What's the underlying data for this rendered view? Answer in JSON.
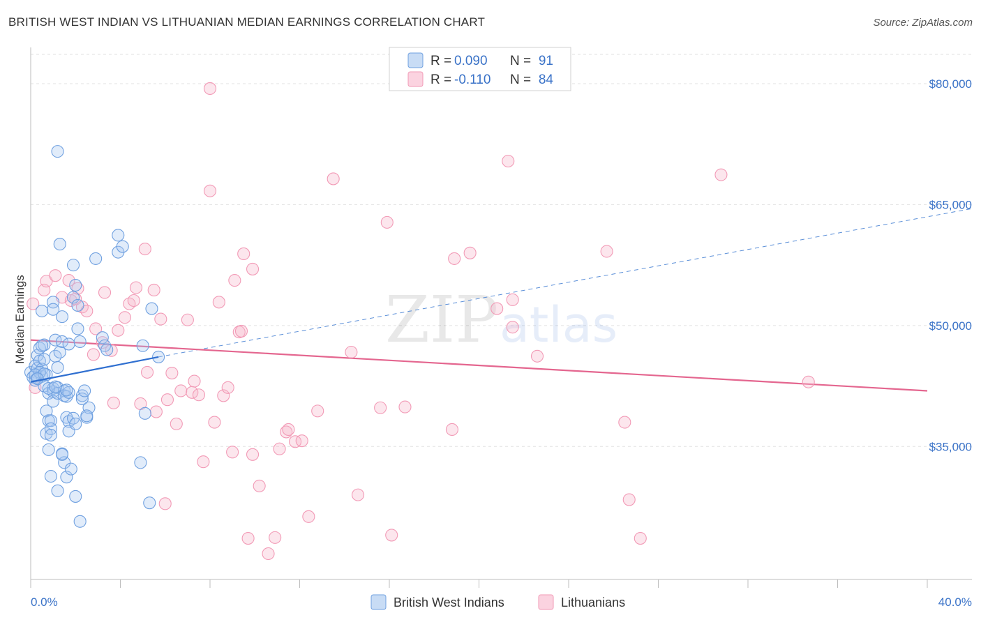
{
  "title": "BRITISH WEST INDIAN VS LITHUANIAN MEDIAN EARNINGS CORRELATION CHART",
  "source": "Source: ZipAtlas.com",
  "watermark": {
    "zip": "ZIP",
    "atlas": "atlas"
  },
  "legend_top": [
    {
      "r_label": "R = ",
      "r_value": "0.090",
      "n_label": "N = ",
      "n_value": "91",
      "color": "#a9c8f0"
    },
    {
      "r_label": "R = ",
      "r_value": "-0.110",
      "n_label": "N = ",
      "n_value": "84",
      "color": "#f7b8cc"
    }
  ],
  "legend_bottom": [
    {
      "label": "British West Indians",
      "color": "#a9c8f0"
    },
    {
      "label": "Lithuanians",
      "color": "#f7b8cc"
    }
  ],
  "chart_data": {
    "type": "scatter",
    "title": "BRITISH WEST INDIAN VS LITHUANIAN MEDIAN EARNINGS CORRELATION CHART",
    "xlabel": "",
    "ylabel": "Median Earnings",
    "xlim": [
      0,
      40
    ],
    "ylim": [
      18500,
      84500
    ],
    "x_tick_labels": [
      "0.0%",
      "40.0%"
    ],
    "y_ticks": [
      35000,
      50000,
      65000,
      80000
    ],
    "y_tick_labels": [
      "$35,000",
      "$50,000",
      "$65,000",
      "$80,000"
    ],
    "series": [
      {
        "name": "British West Indians",
        "color": "#6fa0e0",
        "trend": {
          "x0": 0.0,
          "y0": 43000,
          "x1": 5.7,
          "y1": 46100,
          "dash_to_x": 40.0,
          "dash_to_y": 64500
        },
        "points": [
          [
            0.0,
            44200
          ],
          [
            0.1,
            43600
          ],
          [
            0.2,
            45000
          ],
          [
            0.2,
            43200
          ],
          [
            0.3,
            46300
          ],
          [
            0.3,
            44700
          ],
          [
            0.3,
            43500
          ],
          [
            0.4,
            47200
          ],
          [
            0.4,
            45600
          ],
          [
            0.5,
            43700
          ],
          [
            0.5,
            44600
          ],
          [
            0.5,
            51800
          ],
          [
            0.6,
            47600
          ],
          [
            0.6,
            45800
          ],
          [
            0.6,
            42500
          ],
          [
            0.7,
            43900
          ],
          [
            0.7,
            39400
          ],
          [
            0.7,
            36600
          ],
          [
            0.8,
            38200
          ],
          [
            0.8,
            34600
          ],
          [
            0.8,
            41600
          ],
          [
            0.9,
            38200
          ],
          [
            0.9,
            37200
          ],
          [
            0.9,
            36400
          ],
          [
            0.9,
            31300
          ],
          [
            1.0,
            42200
          ],
          [
            1.0,
            41800
          ],
          [
            1.0,
            40600
          ],
          [
            1.0,
            52900
          ],
          [
            1.1,
            48200
          ],
          [
            1.1,
            46200
          ],
          [
            1.2,
            42300
          ],
          [
            1.2,
            41600
          ],
          [
            1.2,
            44800
          ],
          [
            1.2,
            29500
          ],
          [
            1.3,
            60100
          ],
          [
            1.3,
            46700
          ],
          [
            1.4,
            51100
          ],
          [
            1.4,
            48000
          ],
          [
            1.4,
            34100
          ],
          [
            1.5,
            41900
          ],
          [
            1.5,
            41300
          ],
          [
            1.5,
            33000
          ],
          [
            1.6,
            41200
          ],
          [
            1.6,
            38600
          ],
          [
            1.6,
            31200
          ],
          [
            1.7,
            47700
          ],
          [
            1.7,
            41700
          ],
          [
            1.7,
            38100
          ],
          [
            1.7,
            36900
          ],
          [
            1.8,
            32200
          ],
          [
            1.9,
            53500
          ],
          [
            1.9,
            57500
          ],
          [
            1.9,
            38500
          ],
          [
            2.0,
            37800
          ],
          [
            2.0,
            28800
          ],
          [
            2.1,
            52500
          ],
          [
            2.1,
            49600
          ],
          [
            2.2,
            48000
          ],
          [
            2.2,
            25700
          ],
          [
            2.3,
            41300
          ],
          [
            2.3,
            40900
          ],
          [
            2.4,
            41900
          ],
          [
            2.5,
            38600
          ],
          [
            2.6,
            39800
          ],
          [
            2.9,
            58300
          ],
          [
            3.2,
            48500
          ],
          [
            3.3,
            47500
          ],
          [
            3.4,
            47000
          ],
          [
            3.9,
            59100
          ],
          [
            3.9,
            61200
          ],
          [
            4.1,
            59800
          ],
          [
            4.9,
            33000
          ],
          [
            5.0,
            47500
          ],
          [
            5.1,
            39100
          ],
          [
            5.3,
            28000
          ],
          [
            5.4,
            52100
          ],
          [
            5.7,
            46100
          ],
          [
            1.2,
            71600
          ],
          [
            2.0,
            55000
          ],
          [
            0.4,
            44200
          ],
          [
            0.2,
            43900
          ],
          [
            0.6,
            44000
          ],
          [
            0.8,
            42200
          ],
          [
            1.1,
            42400
          ],
          [
            1.4,
            34000
          ],
          [
            2.5,
            38800
          ],
          [
            0.3,
            43400
          ],
          [
            0.5,
            47500
          ],
          [
            1.0,
            52000
          ],
          [
            1.6,
            42000
          ]
        ]
      },
      {
        "name": "Lithuanians",
        "color": "#f29ab6",
        "trend": {
          "x0": 0.0,
          "y0": 48200,
          "x1": 40.0,
          "y1": 41900
        },
        "points": [
          [
            0.1,
            52700
          ],
          [
            0.2,
            42300
          ],
          [
            0.6,
            54400
          ],
          [
            0.7,
            55500
          ],
          [
            1.1,
            56200
          ],
          [
            1.4,
            53500
          ],
          [
            1.7,
            55600
          ],
          [
            1.8,
            53100
          ],
          [
            2.0,
            53300
          ],
          [
            2.1,
            54600
          ],
          [
            2.3,
            52300
          ],
          [
            2.5,
            51800
          ],
          [
            2.8,
            46400
          ],
          [
            2.9,
            49600
          ],
          [
            3.2,
            47900
          ],
          [
            3.3,
            54100
          ],
          [
            3.6,
            46900
          ],
          [
            3.7,
            40400
          ],
          [
            3.9,
            49400
          ],
          [
            4.2,
            51000
          ],
          [
            4.4,
            52700
          ],
          [
            4.6,
            53100
          ],
          [
            4.7,
            54700
          ],
          [
            4.9,
            40300
          ],
          [
            5.1,
            59500
          ],
          [
            5.2,
            44200
          ],
          [
            5.5,
            54400
          ],
          [
            5.6,
            39300
          ],
          [
            5.8,
            50800
          ],
          [
            6.0,
            27900
          ],
          [
            6.1,
            40800
          ],
          [
            6.3,
            44100
          ],
          [
            6.5,
            37800
          ],
          [
            6.7,
            41900
          ],
          [
            7.0,
            50700
          ],
          [
            7.2,
            41700
          ],
          [
            7.3,
            43100
          ],
          [
            7.5,
            41400
          ],
          [
            7.7,
            33100
          ],
          [
            8.0,
            79400
          ],
          [
            8.0,
            66700
          ],
          [
            8.2,
            38000
          ],
          [
            8.4,
            52900
          ],
          [
            8.6,
            41300
          ],
          [
            8.8,
            42300
          ],
          [
            9.0,
            34300
          ],
          [
            9.1,
            55600
          ],
          [
            9.3,
            49200
          ],
          [
            9.4,
            49300
          ],
          [
            9.5,
            58900
          ],
          [
            9.7,
            23600
          ],
          [
            9.9,
            34000
          ],
          [
            9.9,
            57000
          ],
          [
            10.2,
            30100
          ],
          [
            10.6,
            21700
          ],
          [
            10.9,
            23700
          ],
          [
            11.1,
            34700
          ],
          [
            11.4,
            36800
          ],
          [
            11.5,
            37100
          ],
          [
            11.8,
            35600
          ],
          [
            12.1,
            35700
          ],
          [
            12.4,
            26300
          ],
          [
            12.8,
            39400
          ],
          [
            13.5,
            68200
          ],
          [
            14.3,
            46700
          ],
          [
            14.6,
            29000
          ],
          [
            15.6,
            39800
          ],
          [
            15.9,
            62800
          ],
          [
            16.1,
            24000
          ],
          [
            16.7,
            39900
          ],
          [
            18.8,
            37100
          ],
          [
            18.9,
            58300
          ],
          [
            19.6,
            59000
          ],
          [
            20.8,
            52100
          ],
          [
            21.3,
            70400
          ],
          [
            21.5,
            53200
          ],
          [
            21.5,
            49800
          ],
          [
            22.6,
            46200
          ],
          [
            25.7,
            59200
          ],
          [
            26.5,
            38000
          ],
          [
            26.7,
            28400
          ],
          [
            27.2,
            23600
          ],
          [
            30.8,
            68700
          ],
          [
            34.7,
            43000
          ]
        ]
      }
    ]
  }
}
